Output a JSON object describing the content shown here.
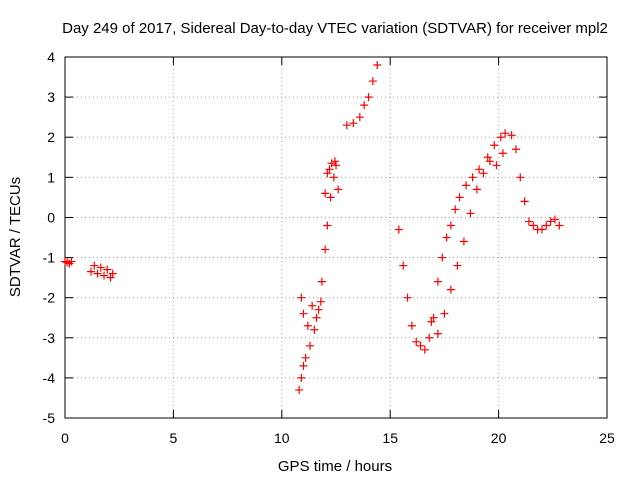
{
  "chart_data": {
    "type": "scatter",
    "title": "Day 249 of 2017, Sidereal Day-to-day VTEC variation (SDTVAR) for receiver mpl2",
    "xlabel": "GPS time / hours",
    "ylabel": "SDTVAR / TECUs",
    "xlim": [
      0,
      25
    ],
    "ylim": [
      -5,
      4
    ],
    "xticks": [
      0,
      5,
      10,
      15,
      20,
      25
    ],
    "yticks": [
      -5,
      -4,
      -3,
      -2,
      -1,
      0,
      1,
      2,
      3,
      4
    ],
    "grid": true,
    "marker": "+",
    "series": [
      {
        "name": "SDTVAR",
        "color": "#ff0000",
        "x": [
          0.0,
          0.1,
          0.2,
          0.3,
          1.2,
          1.35,
          1.5,
          1.65,
          1.8,
          1.95,
          2.1,
          2.2,
          10.8,
          10.9,
          11.0,
          11.1,
          11.3,
          11.5,
          11.7,
          11.85,
          12.0,
          12.1,
          12.25,
          12.4,
          12.5,
          10.9,
          11.0,
          11.2,
          11.4,
          11.6,
          11.8,
          12.0,
          12.1,
          12.2,
          12.3,
          12.45,
          12.6,
          13.0,
          13.3,
          13.6,
          13.8,
          14.0,
          14.2,
          14.4,
          15.4,
          15.6,
          15.8,
          16.0,
          16.2,
          16.4,
          16.6,
          16.8,
          17.0,
          17.2,
          17.4,
          17.6,
          17.8,
          18.0,
          18.2,
          18.5,
          18.8,
          19.1,
          19.5,
          19.8,
          20.1,
          20.3,
          20.6,
          20.8,
          21.0,
          21.2,
          21.4,
          21.6,
          21.8,
          22.0,
          22.2,
          22.4,
          22.6,
          22.8,
          16.9,
          17.2,
          17.5,
          17.8,
          18.1,
          18.4,
          18.7,
          19.0,
          19.3,
          19.6,
          19.9,
          20.2
        ],
        "y": [
          -1.1,
          -1.12,
          -1.15,
          -1.1,
          -1.35,
          -1.2,
          -1.4,
          -1.25,
          -1.45,
          -1.3,
          -1.5,
          -1.4,
          -4.3,
          -4.0,
          -3.7,
          -3.5,
          -3.2,
          -2.8,
          -2.3,
          -1.6,
          -0.8,
          -0.2,
          0.5,
          1.0,
          1.3,
          -2.0,
          -2.4,
          -2.7,
          -2.2,
          -2.5,
          -2.1,
          0.6,
          1.1,
          1.2,
          1.35,
          1.4,
          0.7,
          2.3,
          2.35,
          2.5,
          2.8,
          3.0,
          3.4,
          3.8,
          -0.3,
          -1.2,
          -2.0,
          -2.7,
          -3.1,
          -3.2,
          -3.3,
          -3.0,
          -2.5,
          -1.6,
          -1.0,
          -0.5,
          -0.2,
          0.2,
          0.5,
          0.8,
          1.0,
          1.2,
          1.5,
          1.8,
          2.0,
          2.1,
          2.05,
          1.7,
          1.0,
          0.4,
          -0.1,
          -0.2,
          -0.3,
          -0.3,
          -0.2,
          -0.1,
          -0.05,
          -0.2,
          -2.6,
          -2.9,
          -2.4,
          -1.8,
          -1.2,
          -0.6,
          0.1,
          0.7,
          1.1,
          1.4,
          1.3,
          1.6
        ]
      }
    ]
  }
}
